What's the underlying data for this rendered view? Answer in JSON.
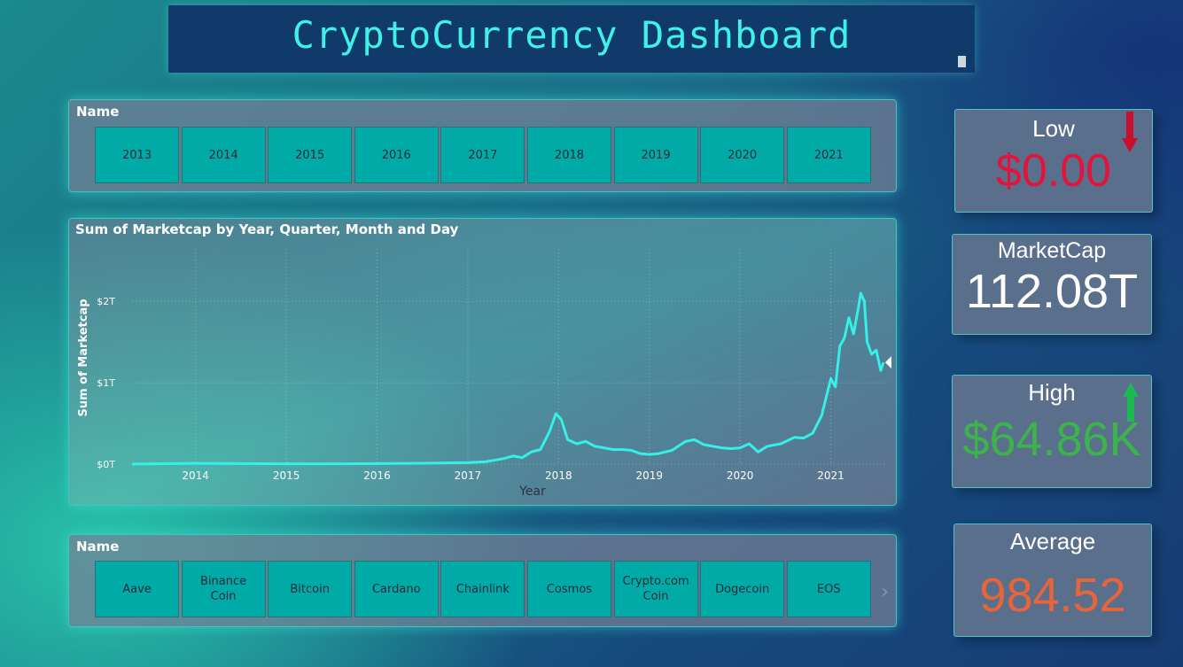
{
  "title": "CryptoCurrency Dashboard",
  "year_slicer": {
    "label": "Name",
    "items": [
      "2013",
      "2014",
      "2015",
      "2016",
      "2017",
      "2018",
      "2019",
      "2020",
      "2021"
    ]
  },
  "name_slicer": {
    "label": "Name",
    "items": [
      {
        "line1": "Aave",
        "line2": ""
      },
      {
        "line1": "Binance",
        "line2": "Coin"
      },
      {
        "line1": "Bitcoin",
        "line2": ""
      },
      {
        "line1": "Cardano",
        "line2": ""
      },
      {
        "line1": "Chainlink",
        "line2": ""
      },
      {
        "line1": "Cosmos",
        "line2": ""
      },
      {
        "line1": "Crypto.com",
        "line2": "Coin"
      },
      {
        "line1": "Dogecoin",
        "line2": ""
      },
      {
        "line1": "EOS",
        "line2": ""
      }
    ]
  },
  "cards": {
    "low": {
      "label": "Low",
      "value": "$0.00",
      "color": "#e0143c",
      "arrow": "down",
      "arrow_color": "#c8102e"
    },
    "marketcap": {
      "label": "MarketCap",
      "value": "112.08T",
      "color": "#ffffff"
    },
    "high": {
      "label": "High",
      "value": "$64.86K",
      "color": "#3cb44b",
      "arrow": "up",
      "arrow_color": "#1db954"
    },
    "average": {
      "label": "Average",
      "value": "984.52",
      "color": "#e8653a"
    }
  },
  "chart_data": {
    "type": "line",
    "title": "Sum of Marketcap by Year, Quarter, Month and Day",
    "xlabel": "Year",
    "ylabel": "Sum of Marketcap",
    "line_color": "#35f0e6",
    "x_ticks": [
      "2014",
      "2015",
      "2016",
      "2017",
      "2018",
      "2019",
      "2020",
      "2021"
    ],
    "y_ticks": [
      "$0T",
      "$1T",
      "$2T"
    ],
    "xlim": [
      2013.3,
      2021.6
    ],
    "ylim": [
      0,
      2.1
    ],
    "grid": true,
    "series": [
      {
        "points": [
          [
            2013.3,
            0.001
          ],
          [
            2014.0,
            0.01
          ],
          [
            2014.5,
            0.007
          ],
          [
            2015.0,
            0.004
          ],
          [
            2015.5,
            0.004
          ],
          [
            2016.0,
            0.007
          ],
          [
            2016.5,
            0.011
          ],
          [
            2017.0,
            0.02
          ],
          [
            2017.2,
            0.03
          ],
          [
            2017.4,
            0.07
          ],
          [
            2017.5,
            0.1
          ],
          [
            2017.6,
            0.08
          ],
          [
            2017.7,
            0.15
          ],
          [
            2017.8,
            0.18
          ],
          [
            2017.9,
            0.4
          ],
          [
            2017.97,
            0.62
          ],
          [
            2018.03,
            0.55
          ],
          [
            2018.1,
            0.3
          ],
          [
            2018.2,
            0.25
          ],
          [
            2018.3,
            0.28
          ],
          [
            2018.4,
            0.22
          ],
          [
            2018.5,
            0.2
          ],
          [
            2018.6,
            0.18
          ],
          [
            2018.7,
            0.18
          ],
          [
            2018.8,
            0.17
          ],
          [
            2018.9,
            0.13
          ],
          [
            2019.0,
            0.12
          ],
          [
            2019.1,
            0.13
          ],
          [
            2019.25,
            0.17
          ],
          [
            2019.4,
            0.28
          ],
          [
            2019.5,
            0.3
          ],
          [
            2019.6,
            0.24
          ],
          [
            2019.7,
            0.22
          ],
          [
            2019.8,
            0.2
          ],
          [
            2019.9,
            0.19
          ],
          [
            2020.0,
            0.2
          ],
          [
            2020.1,
            0.25
          ],
          [
            2020.2,
            0.15
          ],
          [
            2020.3,
            0.22
          ],
          [
            2020.45,
            0.25
          ],
          [
            2020.6,
            0.33
          ],
          [
            2020.7,
            0.32
          ],
          [
            2020.8,
            0.38
          ],
          [
            2020.9,
            0.6
          ],
          [
            2021.0,
            1.05
          ],
          [
            2021.05,
            0.95
          ],
          [
            2021.1,
            1.45
          ],
          [
            2021.15,
            1.55
          ],
          [
            2021.2,
            1.8
          ],
          [
            2021.25,
            1.6
          ],
          [
            2021.3,
            1.9
          ],
          [
            2021.33,
            2.1
          ],
          [
            2021.37,
            2.0
          ],
          [
            2021.4,
            1.5
          ],
          [
            2021.45,
            1.35
          ],
          [
            2021.5,
            1.4
          ],
          [
            2021.55,
            1.15
          ],
          [
            2021.58,
            1.25
          ]
        ]
      }
    ]
  }
}
